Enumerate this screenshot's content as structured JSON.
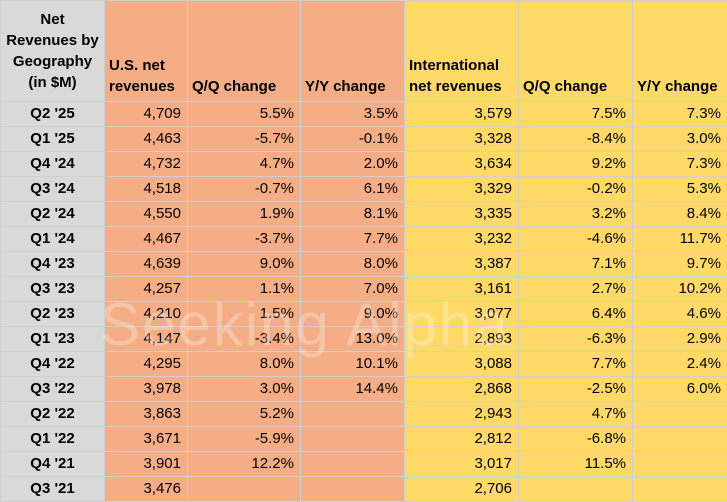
{
  "headers": {
    "corner": [
      "Net",
      "Revenues by",
      "Geography",
      "(in $M)"
    ],
    "us_net": [
      "U.S. net",
      "revenues"
    ],
    "us_qq": "Q/Q change",
    "us_yy": "Y/Y change",
    "intl_net": [
      "International",
      "net revenues"
    ],
    "intl_qq": "Q/Q change",
    "intl_yy": "Y/Y change"
  },
  "rows": [
    {
      "q": "Q2 '25",
      "us": "4,709",
      "us_qq": "5.5%",
      "us_yy": "3.5%",
      "intl": "3,579",
      "intl_qq": "7.5%",
      "intl_yy": "7.3%"
    },
    {
      "q": "Q1 '25",
      "us": "4,463",
      "us_qq": "-5.7%",
      "us_yy": "-0.1%",
      "intl": "3,328",
      "intl_qq": "-8.4%",
      "intl_yy": "3.0%"
    },
    {
      "q": "Q4 '24",
      "us": "4,732",
      "us_qq": "4.7%",
      "us_yy": "2.0%",
      "intl": "3,634",
      "intl_qq": "9.2%",
      "intl_yy": "7.3%"
    },
    {
      "q": "Q3 '24",
      "us": "4,518",
      "us_qq": "-0.7%",
      "us_yy": "6.1%",
      "intl": "3,329",
      "intl_qq": "-0.2%",
      "intl_yy": "5.3%"
    },
    {
      "q": "Q2 '24",
      "us": "4,550",
      "us_qq": "1.9%",
      "us_yy": "8.1%",
      "intl": "3,335",
      "intl_qq": "3.2%",
      "intl_yy": "8.4%"
    },
    {
      "q": "Q1 '24",
      "us": "4,467",
      "us_qq": "-3.7%",
      "us_yy": "7.7%",
      "intl": "3,232",
      "intl_qq": "-4.6%",
      "intl_yy": "11.7%"
    },
    {
      "q": "Q4 '23",
      "us": "4,639",
      "us_qq": "9.0%",
      "us_yy": "8.0%",
      "intl": "3,387",
      "intl_qq": "7.1%",
      "intl_yy": "9.7%"
    },
    {
      "q": "Q3 '23",
      "us": "4,257",
      "us_qq": "1.1%",
      "us_yy": "7.0%",
      "intl": "3,161",
      "intl_qq": "2.7%",
      "intl_yy": "10.2%"
    },
    {
      "q": "Q2 '23",
      "us": "4,210",
      "us_qq": "1.5%",
      "us_yy": "9.0%",
      "intl": "3,077",
      "intl_qq": "6.4%",
      "intl_yy": "4.6%"
    },
    {
      "q": "Q1 '23",
      "us": "4,147",
      "us_qq": "-3.4%",
      "us_yy": "13.0%",
      "intl": "2,893",
      "intl_qq": "-6.3%",
      "intl_yy": "2.9%"
    },
    {
      "q": "Q4 '22",
      "us": "4,295",
      "us_qq": "8.0%",
      "us_yy": "10.1%",
      "intl": "3,088",
      "intl_qq": "7.7%",
      "intl_yy": "2.4%"
    },
    {
      "q": "Q3 '22",
      "us": "3,978",
      "us_qq": "3.0%",
      "us_yy": "14.4%",
      "intl": "2,868",
      "intl_qq": "-2.5%",
      "intl_yy": "6.0%"
    },
    {
      "q": "Q2 '22",
      "us": "3,863",
      "us_qq": "5.2%",
      "us_yy": "",
      "intl": "2,943",
      "intl_qq": "4.7%",
      "intl_yy": ""
    },
    {
      "q": "Q1 '22",
      "us": "3,671",
      "us_qq": "-5.9%",
      "us_yy": "",
      "intl": "2,812",
      "intl_qq": "-6.8%",
      "intl_yy": ""
    },
    {
      "q": "Q4 '21",
      "us": "3,901",
      "us_qq": "12.2%",
      "us_yy": "",
      "intl": "3,017",
      "intl_qq": "11.5%",
      "intl_yy": ""
    },
    {
      "q": "Q3 '21",
      "us": "3,476",
      "us_qq": "",
      "us_yy": "",
      "intl": "2,706",
      "intl_qq": "",
      "intl_yy": ""
    }
  ],
  "watermark": "Seeking Alpha",
  "colors": {
    "label_bg": "#d9d9d9",
    "us_bg": "#f5ad85",
    "intl_bg": "#ffd966"
  }
}
